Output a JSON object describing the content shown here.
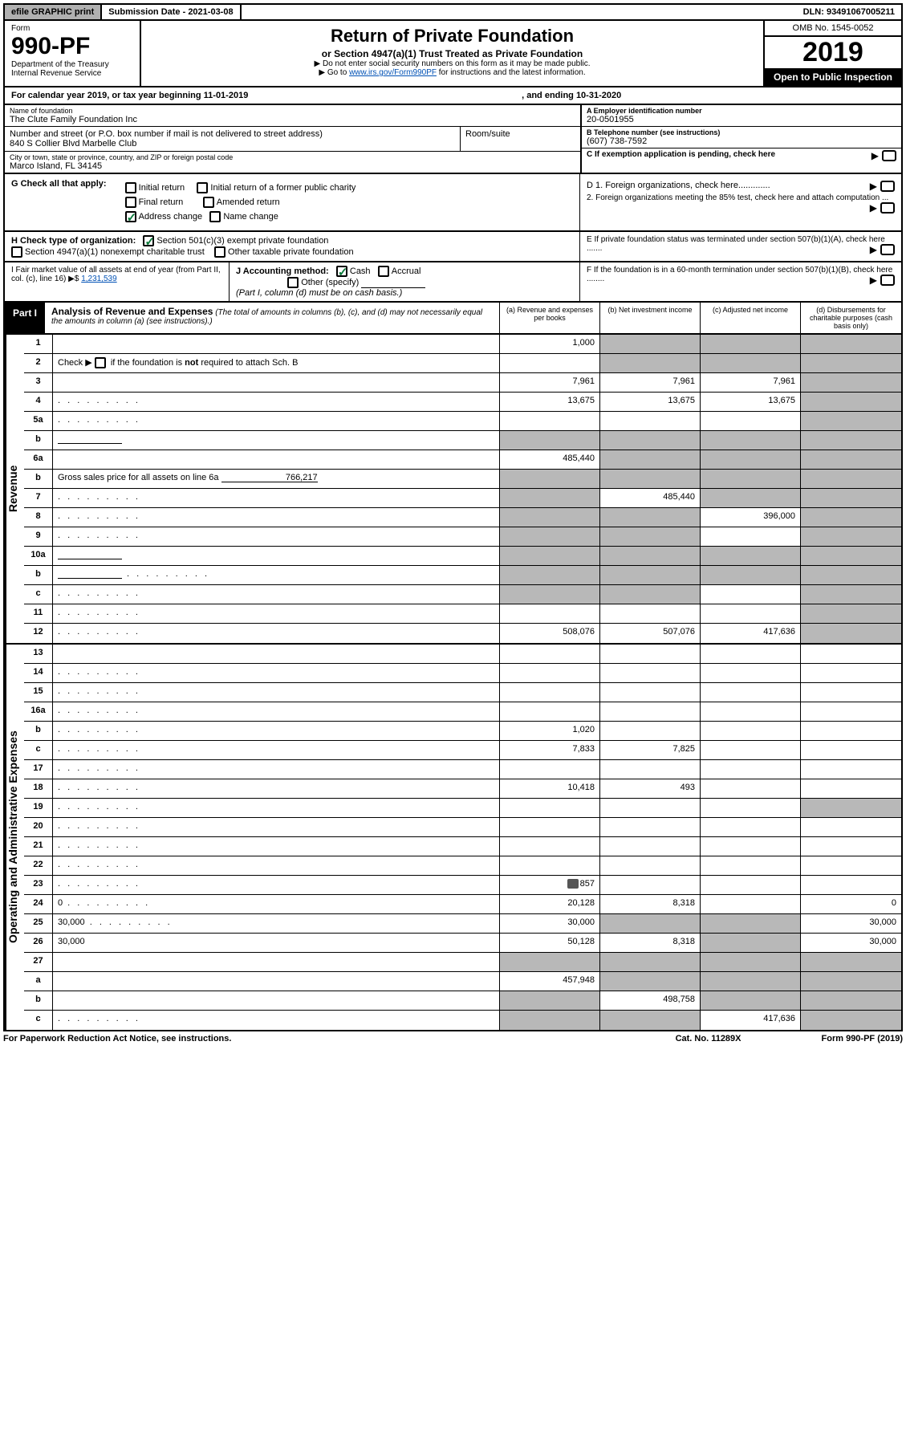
{
  "topbar": {
    "efile": "efile GRAPHIC print",
    "sub_date_label": "Submission Date - 2021-03-08",
    "dln": "DLN: 93491067005211"
  },
  "header": {
    "form_word": "Form",
    "form_num": "990-PF",
    "dept": "Department of the Treasury",
    "irs": "Internal Revenue Service",
    "title": "Return of Private Foundation",
    "subtitle": "or Section 4947(a)(1) Trust Treated as Private Foundation",
    "note1": "▶ Do not enter social security numbers on this form as it may be made public.",
    "note2_pre": "▶ Go to ",
    "note2_link": "www.irs.gov/Form990PF",
    "note2_post": " for instructions and the latest information.",
    "omb": "OMB No. 1545-0052",
    "year": "2019",
    "open": "Open to Public Inspection"
  },
  "calyear": {
    "text": "For calendar year 2019, or tax year beginning 11-01-2019",
    "end": ", and ending 10-31-2020"
  },
  "id": {
    "name_lbl": "Name of foundation",
    "name": "The Clute Family Foundation Inc",
    "addr_lbl": "Number and street (or P.O. box number if mail is not delivered to street address)",
    "addr": "840 S Collier Blvd Marbelle Club",
    "room_lbl": "Room/suite",
    "city_lbl": "City or town, state or province, country, and ZIP or foreign postal code",
    "city": "Marco Island, FL  34145",
    "a_lbl": "A Employer identification number",
    "a_val": "20-0501955",
    "b_lbl": "B Telephone number (see instructions)",
    "b_val": "(607) 738-7592",
    "c_lbl": "C If exemption application is pending, check here"
  },
  "g": {
    "label": "G Check all that apply:",
    "initial": "Initial return",
    "initial_former": "Initial return of a former public charity",
    "final": "Final return",
    "amended": "Amended return",
    "addr_change": "Address change",
    "name_change": "Name change"
  },
  "d": {
    "d1": "D 1. Foreign organizations, check here.............",
    "d2": "2. Foreign organizations meeting the 85% test, check here and attach computation ...",
    "e": "E  If private foundation status was terminated under section 507(b)(1)(A), check here .......",
    "f": "F  If the foundation is in a 60-month termination under section 507(b)(1)(B), check here ........"
  },
  "h": {
    "label": "H Check type of organization:",
    "opt1": "Section 501(c)(3) exempt private foundation",
    "opt2": "Section 4947(a)(1) nonexempt charitable trust",
    "opt3": "Other taxable private foundation"
  },
  "i": {
    "label": "I Fair market value of all assets at end of year (from Part II, col. (c), line 16)",
    "arrow": "▶$",
    "val": "1,231,539"
  },
  "j": {
    "label": "J Accounting method:",
    "cash": "Cash",
    "accrual": "Accrual",
    "other": "Other (specify)",
    "note": "(Part I, column (d) must be on cash basis.)"
  },
  "part1": {
    "label": "Part I",
    "title": "Analysis of Revenue and Expenses",
    "note": "(The total of amounts in columns (b), (c), and (d) may not necessarily equal the amounts in column (a) (see instructions).)",
    "col_a": "(a)    Revenue and expenses per books",
    "col_b": "(b)   Net investment income",
    "col_c": "(c)   Adjusted net income",
    "col_d": "(d)   Disbursements for charitable purposes (cash basis only)"
  },
  "sections": {
    "revenue": "Revenue",
    "expenses": "Operating and Administrative Expenses"
  },
  "rows": {
    "r1": {
      "n": "1",
      "d": "",
      "a": "1,000",
      "b": "",
      "c": "",
      "sb": true,
      "sc": true,
      "sd": true
    },
    "r2": {
      "n": "2",
      "d_pre": "Check ▶ ",
      "d_post": " if the foundation is <b>not</b> required to attach Sch. B",
      "a": "",
      "b": "",
      "c": "",
      "d": "",
      "sb": true,
      "sc": true,
      "sd": true,
      "cbox": true
    },
    "r3": {
      "n": "3",
      "d": "",
      "a": "7,961",
      "b": "7,961",
      "c": "7,961",
      "sd": true
    },
    "r4": {
      "n": "4",
      "d": "",
      "a": "13,675",
      "b": "13,675",
      "c": "13,675",
      "sd": true,
      "dots": true
    },
    "r5a": {
      "n": "5a",
      "d": "",
      "a": "",
      "b": "",
      "c": "",
      "sd": true,
      "dots": true
    },
    "r5b": {
      "n": "b",
      "d": "",
      "a": "",
      "b": "",
      "c": "",
      "sa": true,
      "sb": true,
      "sc": true,
      "sd": true,
      "blank": true
    },
    "r6a": {
      "n": "6a",
      "d": "",
      "a": "485,440",
      "b": "",
      "c": "",
      "sb": true,
      "sc": true,
      "sd": true
    },
    "r6b": {
      "n": "b",
      "d_pre": "Gross sales price for all assets on line 6a ",
      "d_val": "766,217",
      "a": "",
      "b": "",
      "c": "",
      "d": "",
      "sa": true,
      "sb": true,
      "sc": true,
      "sd": true,
      "blankval": true
    },
    "r7": {
      "n": "7",
      "d": "",
      "a": "",
      "b": "485,440",
      "c": "",
      "sa": true,
      "sc": true,
      "sd": true,
      "dots": true
    },
    "r8": {
      "n": "8",
      "d": "",
      "a": "",
      "b": "",
      "c": "396,000",
      "sa": true,
      "sb": true,
      "sd": true,
      "dots": true
    },
    "r9": {
      "n": "9",
      "d": "",
      "a": "",
      "b": "",
      "c": "",
      "sa": true,
      "sb": true,
      "sd": true,
      "dots": true
    },
    "r10a": {
      "n": "10a",
      "d": "",
      "a": "",
      "b": "",
      "c": "",
      "sa": true,
      "sb": true,
      "sc": true,
      "sd": true,
      "blank": true
    },
    "r10b": {
      "n": "b",
      "d": "",
      "a": "",
      "b": "",
      "c": "",
      "sa": true,
      "sb": true,
      "sc": true,
      "sd": true,
      "blank": true,
      "dots": true
    },
    "r10c": {
      "n": "c",
      "d": "",
      "a": "",
      "b": "",
      "c": "",
      "sa": true,
      "sb": true,
      "sd": true,
      "dots": true
    },
    "r11": {
      "n": "11",
      "d": "",
      "a": "",
      "b": "",
      "c": "",
      "sd": true,
      "dots": true
    },
    "r12": {
      "n": "12",
      "d": "",
      "a": "508,076",
      "b": "507,076",
      "c": "417,636",
      "sd": true,
      "dots": true
    },
    "r13": {
      "n": "13",
      "d": "",
      "a": "",
      "b": "",
      "c": ""
    },
    "r14": {
      "n": "14",
      "d": "",
      "a": "",
      "b": "",
      "c": "",
      "dots": true
    },
    "r15": {
      "n": "15",
      "d": "",
      "a": "",
      "b": "",
      "c": "",
      "dots": true
    },
    "r16a": {
      "n": "16a",
      "d": "",
      "a": "",
      "b": "",
      "c": "",
      "dots": true
    },
    "r16b": {
      "n": "b",
      "d": "",
      "a": "1,020",
      "b": "",
      "c": "",
      "dots": true
    },
    "r16c": {
      "n": "c",
      "d": "",
      "a": "7,833",
      "b": "7,825",
      "c": "",
      "dots": true
    },
    "r17": {
      "n": "17",
      "d": "",
      "a": "",
      "b": "",
      "c": "",
      "dots": true
    },
    "r18": {
      "n": "18",
      "d": "",
      "a": "10,418",
      "b": "493",
      "c": "",
      "dots": true
    },
    "r19": {
      "n": "19",
      "d": "",
      "a": "",
      "b": "",
      "c": "",
      "sd": true,
      "dots": true
    },
    "r20": {
      "n": "20",
      "d": "",
      "a": "",
      "b": "",
      "c": "",
      "dots": true
    },
    "r21": {
      "n": "21",
      "d": "",
      "a": "",
      "b": "",
      "c": "",
      "dots": true
    },
    "r22": {
      "n": "22",
      "d": "",
      "a": "",
      "b": "",
      "c": "",
      "dots": true
    },
    "r23": {
      "n": "23",
      "d": "",
      "a": "857",
      "b": "",
      "c": "",
      "dots": true,
      "icon": true
    },
    "r24": {
      "n": "24",
      "d": "0",
      "a": "20,128",
      "b": "8,318",
      "c": "",
      "dots": true
    },
    "r25": {
      "n": "25",
      "d": "30,000",
      "a": "30,000",
      "b": "",
      "c": "",
      "sb": true,
      "sc": true,
      "dots": true
    },
    "r26": {
      "n": "26",
      "d": "30,000",
      "a": "50,128",
      "b": "8,318",
      "c": "",
      "sc": true
    },
    "r27": {
      "n": "27",
      "d": "",
      "a": "",
      "b": "",
      "c": "",
      "sa": true,
      "sb": true,
      "sc": true,
      "sd": true
    },
    "r27a": {
      "n": "a",
      "d": "",
      "a": "457,948",
      "b": "",
      "c": "",
      "sb": true,
      "sc": true,
      "sd": true
    },
    "r27b": {
      "n": "b",
      "d": "",
      "a": "",
      "b": "498,758",
      "c": "",
      "sa": true,
      "sc": true,
      "sd": true
    },
    "r27c": {
      "n": "c",
      "d": "",
      "a": "",
      "b": "",
      "c": "417,636",
      "sa": true,
      "sb": true,
      "sd": true,
      "dots": true
    }
  },
  "row_order_rev": [
    "r1",
    "r2",
    "r3",
    "r4",
    "r5a",
    "r5b",
    "r6a",
    "r6b",
    "r7",
    "r8",
    "r9",
    "r10a",
    "r10b",
    "r10c",
    "r11",
    "r12"
  ],
  "row_order_exp": [
    "r13",
    "r14",
    "r15",
    "r16a",
    "r16b",
    "r16c",
    "r17",
    "r18",
    "r19",
    "r20",
    "r21",
    "r22",
    "r23",
    "r24",
    "r25",
    "r26",
    "r27",
    "r27a",
    "r27b",
    "r27c"
  ],
  "footer": {
    "pra": "For Paperwork Reduction Act Notice, see instructions.",
    "cat": "Cat. No. 11289X",
    "form": "Form 990-PF (2019)"
  }
}
